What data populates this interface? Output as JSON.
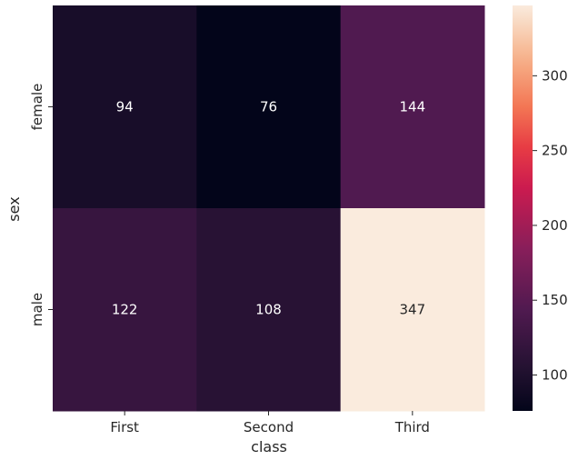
{
  "chart_data": {
    "type": "heatmap",
    "xlabel": "class",
    "ylabel": "sex",
    "x_categories": [
      "First",
      "Second",
      "Third"
    ],
    "y_categories": [
      "female",
      "male"
    ],
    "values": [
      [
        94,
        76,
        144
      ],
      [
        122,
        108,
        347
      ]
    ],
    "colorbar": {
      "range": [
        76,
        347
      ],
      "ticks": [
        100,
        150,
        200,
        250,
        300
      ],
      "tick_labels": [
        "100",
        "150",
        "200",
        "250",
        "300"
      ]
    },
    "colormap": "rocket",
    "annotations": true,
    "grid": false
  }
}
